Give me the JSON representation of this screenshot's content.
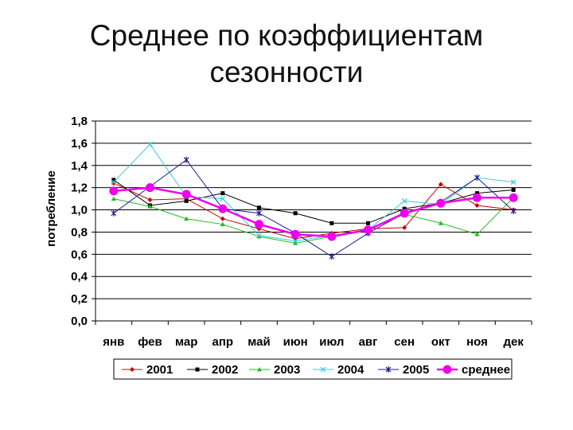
{
  "title_lines": [
    "Среднее по коэффициентам",
    "сезонности"
  ],
  "chart_data": {
    "type": "line",
    "title": "Среднее по коэффициентам сезонности",
    "ylabel": "потребление",
    "xlabel": "",
    "ylim": [
      0,
      1.8
    ],
    "yticks": [
      0,
      0.2,
      0.4,
      0.6,
      0.8,
      1.0,
      1.2,
      1.4,
      1.6,
      1.8
    ],
    "ytick_labels": [
      "0,0",
      "0,2",
      "0,4",
      "0,6",
      "0,8",
      "1,0",
      "1,2",
      "1,4",
      "1,6",
      "1,8"
    ],
    "grid": "horizontal",
    "legend": "bottom",
    "categories": [
      "янв",
      "фев",
      "мар",
      "апр",
      "май",
      "июн",
      "июл",
      "авг",
      "сен",
      "окт",
      "ноя",
      "дек"
    ],
    "series": [
      {
        "name": "2001",
        "color": "#cc0000",
        "marker": "diamond",
        "values": [
          1.24,
          1.09,
          1.1,
          0.92,
          0.83,
          0.74,
          0.79,
          0.83,
          0.84,
          1.23,
          1.04,
          1.0
        ]
      },
      {
        "name": "2002",
        "color": "#000000",
        "marker": "square",
        "values": [
          1.27,
          1.04,
          1.08,
          1.15,
          1.02,
          0.97,
          0.88,
          0.88,
          1.01,
          1.06,
          1.15,
          1.18
        ]
      },
      {
        "name": "2003",
        "color": "#22bb22",
        "marker": "triangle",
        "values": [
          1.1,
          1.03,
          0.92,
          0.87,
          0.76,
          0.7,
          0.76,
          0.82,
          0.96,
          0.88,
          0.78,
          1.11
        ]
      },
      {
        "name": "2004",
        "color": "#33ccdd",
        "marker": "x",
        "values": [
          1.25,
          1.59,
          1.12,
          1.1,
          0.77,
          0.72,
          0.77,
          0.82,
          1.08,
          1.05,
          1.29,
          1.25
        ]
      },
      {
        "name": "2005",
        "color": "#1c1c8c",
        "marker": "star",
        "values": [
          0.97,
          1.21,
          1.45,
          1.01,
          0.97,
          0.79,
          0.58,
          0.79,
          0.97,
          1.07,
          1.29,
          0.99
        ]
      },
      {
        "name": "среднее",
        "color": "#ee00ee",
        "marker": "circle",
        "values": [
          1.17,
          1.2,
          1.14,
          1.01,
          0.87,
          0.78,
          0.76,
          0.82,
          0.97,
          1.06,
          1.11,
          1.11
        ]
      }
    ]
  }
}
